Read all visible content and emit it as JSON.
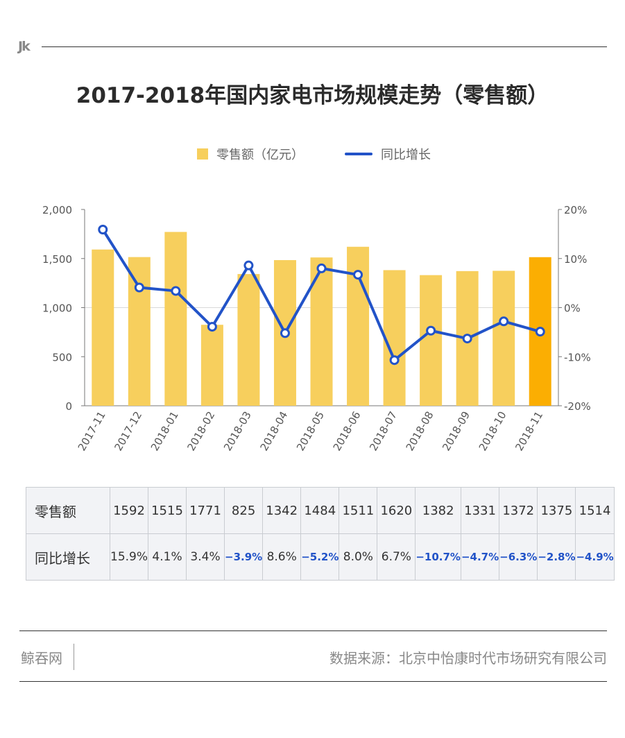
{
  "header": {
    "logo": "Jk"
  },
  "title": "2017-2018年国内家电市场规模走势（零售额）",
  "legend": {
    "bar_label": "零售额（亿元）",
    "line_label": "同比增长"
  },
  "colors": {
    "bar": "#f7cf5d",
    "bar_highlight": "#fbae02",
    "line": "#2253c8",
    "negative_text": "#2253c8"
  },
  "chart_data": {
    "type": "bar",
    "categories": [
      "2017-11",
      "2017-12",
      "2018-01",
      "2018-02",
      "2018-03",
      "2018-04",
      "2018-05",
      "2018-06",
      "2018-07",
      "2018-08",
      "2018-09",
      "2018-10",
      "2018-11"
    ],
    "series": [
      {
        "name": "零售额（亿元）",
        "type": "bar",
        "axis": "left",
        "values": [
          1592,
          1515,
          1771,
          825,
          1342,
          1484,
          1511,
          1620,
          1382,
          1331,
          1372,
          1375,
          1514
        ]
      },
      {
        "name": "同比增长",
        "type": "line",
        "axis": "right",
        "values": [
          15.9,
          4.1,
          3.4,
          -3.9,
          8.6,
          -5.2,
          8.0,
          6.7,
          -10.7,
          -4.7,
          -6.3,
          -2.8,
          -4.9
        ]
      }
    ],
    "highlight_category": "2018-11",
    "left_axis": {
      "ticks": [
        "0",
        "500",
        "1,000",
        "1,500",
        "2,000"
      ],
      "range": [
        0,
        2000
      ]
    },
    "right_axis": {
      "ticks": [
        "-20%",
        "-10%",
        "0%",
        "10%",
        "20%"
      ],
      "range": [
        -20,
        20
      ]
    }
  },
  "table": {
    "row1_header": "零售额",
    "row1": [
      "1592",
      "1515",
      "1771",
      "825",
      "1342",
      "1484",
      "1511",
      "1620",
      "1382",
      "1331",
      "1372",
      "1375",
      "1514"
    ],
    "row2_header": "同比增长",
    "row2": [
      "15.9%",
      "4.1%",
      "3.4%",
      "−3.9%",
      "8.6%",
      "−5.2%",
      "8.0%",
      "6.7%",
      "−10.7%",
      "−4.7%",
      "−6.3%",
      "−2.8%",
      "−4.9%"
    ]
  },
  "footer": {
    "brand": "鲸吞网",
    "source": "数据来源：北京中怡康时代市场研究有限公司"
  }
}
